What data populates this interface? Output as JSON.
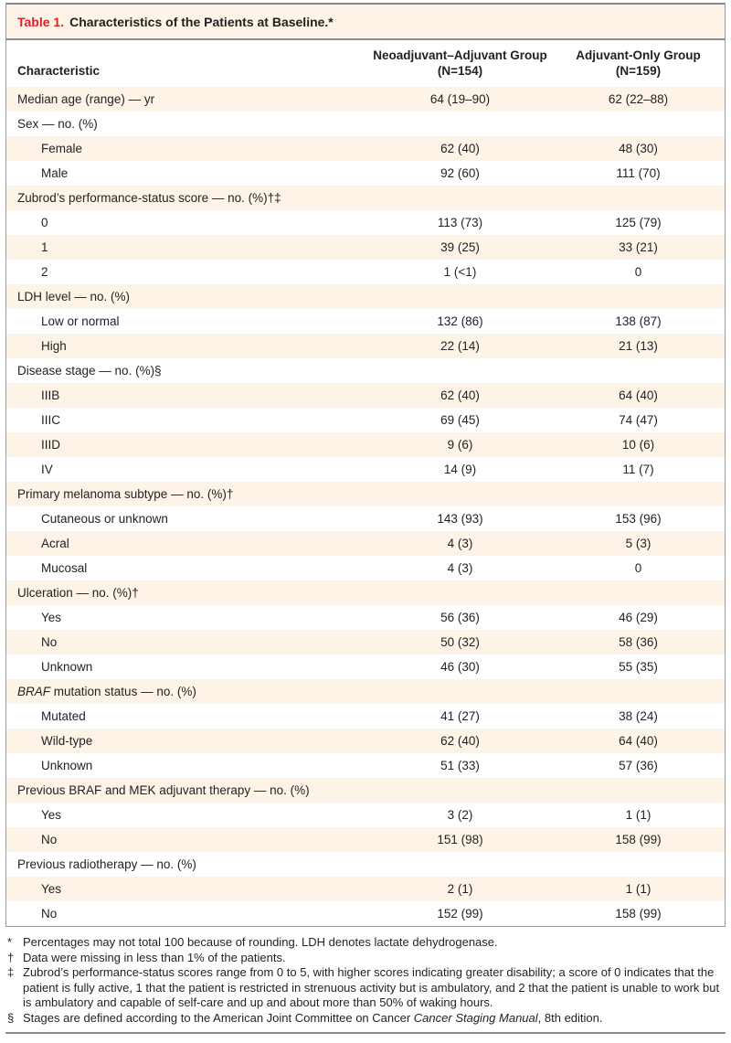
{
  "table": {
    "title_label": "Table 1.",
    "title_text": "Characteristics of the Patients at Baseline.*",
    "accent_color": "#de2128",
    "shaded_row_color": "#fdf4e7",
    "columns": [
      {
        "label": "Characteristic"
      },
      {
        "label": "Neoadjuvant–Adjuvant Group",
        "sub": "(N=154)"
      },
      {
        "label": "Adjuvant-Only Group",
        "sub": "(N=159)"
      }
    ],
    "rows": [
      {
        "label": "Median age (range) — yr",
        "indent": 0,
        "neoadjuvant_adjuvant": "64 (19–90)",
        "adjuvant_only": "62 (22–88)"
      },
      {
        "label": "Sex — no. (%)",
        "indent": 0,
        "neoadjuvant_adjuvant": "",
        "adjuvant_only": ""
      },
      {
        "label": "Female",
        "indent": 1,
        "neoadjuvant_adjuvant": "62 (40)",
        "adjuvant_only": "48 (30)"
      },
      {
        "label": "Male",
        "indent": 1,
        "neoadjuvant_adjuvant": "92 (60)",
        "adjuvant_only": "111 (70)"
      },
      {
        "label": "Zubrod’s performance-status score — no. (%)†‡",
        "indent": 0,
        "neoadjuvant_adjuvant": "",
        "adjuvant_only": ""
      },
      {
        "label": "0",
        "indent": 1,
        "neoadjuvant_adjuvant": "113 (73)",
        "adjuvant_only": "125 (79)"
      },
      {
        "label": "1",
        "indent": 1,
        "neoadjuvant_adjuvant": "39 (25)",
        "adjuvant_only": "33 (21)"
      },
      {
        "label": "2",
        "indent": 1,
        "neoadjuvant_adjuvant": "1 (<1)",
        "adjuvant_only": "0"
      },
      {
        "label": "LDH level — no. (%)",
        "indent": 0,
        "neoadjuvant_adjuvant": "",
        "adjuvant_only": ""
      },
      {
        "label": "Low or normal",
        "indent": 1,
        "neoadjuvant_adjuvant": "132 (86)",
        "adjuvant_only": "138 (87)"
      },
      {
        "label": "High",
        "indent": 1,
        "neoadjuvant_adjuvant": "22 (14)",
        "adjuvant_only": "21 (13)"
      },
      {
        "label": "Disease stage — no. (%)§",
        "indent": 0,
        "neoadjuvant_adjuvant": "",
        "adjuvant_only": ""
      },
      {
        "label": "IIIB",
        "indent": 1,
        "neoadjuvant_adjuvant": "62 (40)",
        "adjuvant_only": "64 (40)"
      },
      {
        "label": "IIIC",
        "indent": 1,
        "neoadjuvant_adjuvant": "69 (45)",
        "adjuvant_only": "74 (47)"
      },
      {
        "label": "IIID",
        "indent": 1,
        "neoadjuvant_adjuvant": "9 (6)",
        "adjuvant_only": "10 (6)"
      },
      {
        "label": "IV",
        "indent": 1,
        "neoadjuvant_adjuvant": "14 (9)",
        "adjuvant_only": "11 (7)"
      },
      {
        "label": "Primary melanoma subtype — no. (%)†",
        "indent": 0,
        "neoadjuvant_adjuvant": "",
        "adjuvant_only": ""
      },
      {
        "label": "Cutaneous or unknown",
        "indent": 1,
        "neoadjuvant_adjuvant": "143 (93)",
        "adjuvant_only": "153 (96)"
      },
      {
        "label": "Acral",
        "indent": 1,
        "neoadjuvant_adjuvant": "4 (3)",
        "adjuvant_only": "5 (3)"
      },
      {
        "label": "Mucosal",
        "indent": 1,
        "neoadjuvant_adjuvant": "4 (3)",
        "adjuvant_only": "0"
      },
      {
        "label": "Ulceration — no. (%)†",
        "indent": 0,
        "neoadjuvant_adjuvant": "",
        "adjuvant_only": ""
      },
      {
        "label": "Yes",
        "indent": 1,
        "neoadjuvant_adjuvant": "56 (36)",
        "adjuvant_only": "46 (29)"
      },
      {
        "label": "No",
        "indent": 1,
        "neoadjuvant_adjuvant": "50 (32)",
        "adjuvant_only": "58 (36)"
      },
      {
        "label": "Unknown",
        "indent": 1,
        "neoadjuvant_adjuvant": "46 (30)",
        "adjuvant_only": "55 (35)"
      },
      {
        "label_italic": "BRAF",
        "label": " mutation status — no. (%)",
        "indent": 0,
        "neoadjuvant_adjuvant": "",
        "adjuvant_only": ""
      },
      {
        "label": "Mutated",
        "indent": 1,
        "neoadjuvant_adjuvant": "41 (27)",
        "adjuvant_only": "38 (24)"
      },
      {
        "label": "Wild-type",
        "indent": 1,
        "neoadjuvant_adjuvant": "62 (40)",
        "adjuvant_only": "64 (40)"
      },
      {
        "label": "Unknown",
        "indent": 1,
        "neoadjuvant_adjuvant": "51 (33)",
        "adjuvant_only": "57 (36)"
      },
      {
        "label": "Previous BRAF and MEK adjuvant therapy — no. (%)",
        "indent": 0,
        "neoadjuvant_adjuvant": "",
        "adjuvant_only": ""
      },
      {
        "label": "Yes",
        "indent": 1,
        "neoadjuvant_adjuvant": "3 (2)",
        "adjuvant_only": "1 (1)"
      },
      {
        "label": "No",
        "indent": 1,
        "neoadjuvant_adjuvant": "151 (98)",
        "adjuvant_only": "158 (99)"
      },
      {
        "label": "Previous radiotherapy — no. (%)",
        "indent": 0,
        "neoadjuvant_adjuvant": "",
        "adjuvant_only": ""
      },
      {
        "label": "Yes",
        "indent": 1,
        "neoadjuvant_adjuvant": "2 (1)",
        "adjuvant_only": "1 (1)"
      },
      {
        "label": "No",
        "indent": 1,
        "neoadjuvant_adjuvant": "152 (99)",
        "adjuvant_only": "158 (99)"
      }
    ],
    "footnotes": [
      {
        "symbol": "*",
        "segments": [
          {
            "text": "Percentages may not total 100 because of rounding. LDH denotes lactate dehydrogenase."
          }
        ]
      },
      {
        "symbol": "†",
        "segments": [
          {
            "text": "Data were missing in less than 1% of the patients."
          }
        ]
      },
      {
        "symbol": "‡",
        "segments": [
          {
            "text": "Zubrod’s performance-status scores range from 0 to 5, with higher scores indicating greater disability; a score of 0 indicates that the patient is fully active, 1 that the patient is restricted in strenuous activity but is ambulatory, and 2 that the patient is unable to work but is ambulatory and capable of self-care and up and about more than 50% of waking hours."
          }
        ]
      },
      {
        "symbol": "§",
        "segments": [
          {
            "text": "Stages are defined according to the American Joint Committee on Cancer "
          },
          {
            "text": "Cancer Staging Manual",
            "italic": true
          },
          {
            "text": ", 8th edition."
          }
        ]
      }
    ]
  }
}
